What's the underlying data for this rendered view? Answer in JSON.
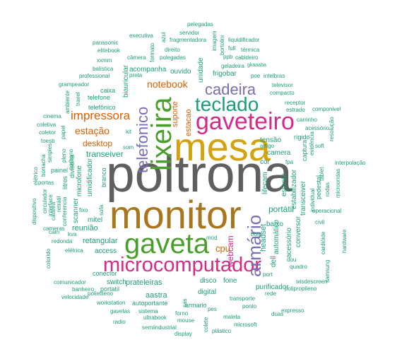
{
  "title": "word cloud",
  "colors": {
    "gray": "#5f5f5f",
    "gold": "#d4a20c",
    "bronze": "#a9761e",
    "green": "#4a9e2b",
    "magenta": "#d42a8a",
    "teal": "#1b9e77",
    "purple": "#7570b3",
    "orange": "#d95f02"
  },
  "words": [
    {
      "text": "poltrona",
      "color": "gray"
    },
    {
      "text": "mesa",
      "color": "gold"
    },
    {
      "text": "monitor",
      "color": "bronze"
    },
    {
      "text": "gaveta",
      "color": "green"
    },
    {
      "text": "gaveteiro",
      "color": "magenta"
    },
    {
      "text": "microcomputador",
      "color": "magenta"
    },
    {
      "text": "lixeira",
      "color": "green"
    },
    {
      "text": "teclado",
      "color": "teal"
    },
    {
      "text": "cadeira",
      "color": "purple"
    },
    {
      "text": "telefonico",
      "color": "purple"
    },
    {
      "text": "armário",
      "color": "purple"
    },
    {
      "text": "impressora",
      "color": "orange"
    },
    {
      "text": "notebook",
      "color": "orange"
    },
    {
      "text": "estação",
      "color": "orange"
    },
    {
      "text": "desktop",
      "color": "orange"
    },
    {
      "text": "transeiver",
      "color": "teal"
    },
    {
      "text": "webcam",
      "color": "magenta"
    },
    {
      "text": "cpu",
      "color": "orange"
    },
    {
      "text": "portátil",
      "color": "teal"
    },
    {
      "text": "suporte",
      "color": "orange"
    },
    {
      "text": "estacao",
      "color": "orange"
    },
    {
      "text": "reunião",
      "color": "teal"
    },
    {
      "text": "retangular",
      "color": "teal"
    },
    {
      "text": "access",
      "color": "teal"
    },
    {
      "text": "prateleiras",
      "color": "teal"
    },
    {
      "text": "fone",
      "color": "teal"
    },
    {
      "text": "disco",
      "color": "teal"
    },
    {
      "text": "switch",
      "color": "teal"
    },
    {
      "text": "aastra",
      "color": "teal"
    },
    {
      "text": "digital",
      "color": "teal"
    },
    {
      "text": "purificador",
      "color": "teal"
    },
    {
      "text": "baixo",
      "color": "teal"
    },
    {
      "text": "tensão",
      "color": "teal"
    },
    {
      "text": "camera",
      "color": "teal"
    },
    {
      "text": "cor",
      "color": "teal"
    },
    {
      "text": "estante",
      "color": "teal"
    },
    {
      "text": "lifecam",
      "color": "teal"
    },
    {
      "text": "headset",
      "color": "teal"
    },
    {
      "text": "dell",
      "color": "teal"
    },
    {
      "text": "automático",
      "color": "teal"
    },
    {
      "text": "frigobar",
      "color": "teal"
    },
    {
      "text": "acompanha",
      "color": "teal"
    },
    {
      "text": "ouvido",
      "color": "teal"
    },
    {
      "text": "unidade",
      "color": "teal"
    },
    {
      "text": "biauricular",
      "color": "teal"
    },
    {
      "text": "umidificador",
      "color": "teal"
    },
    {
      "text": "microfone",
      "color": "teal"
    },
    {
      "text": "scanner",
      "color": "teal"
    },
    {
      "text": "mitel",
      "color": "teal"
    },
    {
      "text": "caixa",
      "color": "teal"
    },
    {
      "text": "telefone",
      "color": "teal"
    },
    {
      "text": "telefônico",
      "color": "teal"
    },
    {
      "text": "branco",
      "color": "teal"
    },
    {
      "text": "painel",
      "color": "teal"
    },
    {
      "text": "litros",
      "color": "teal"
    },
    {
      "text": "divisoria",
      "color": "teal"
    },
    {
      "text": "conector",
      "color": "teal"
    },
    {
      "text": "autoportante",
      "color": "teal"
    },
    {
      "text": "portatil",
      "color": "teal"
    },
    {
      "text": "estabilizador",
      "color": "teal"
    },
    {
      "text": "acessório",
      "color": "teal"
    },
    {
      "text": "conversor",
      "color": "teal"
    },
    {
      "text": "transceiver",
      "color": "teal"
    },
    {
      "text": "captura",
      "color": "teal"
    },
    {
      "text": "rígido",
      "color": "teal"
    },
    {
      "text": "pedestal",
      "color": "teal"
    },
    {
      "text": "executiva",
      "color": "teal"
    },
    {
      "text": "servidor",
      "color": "teal"
    },
    {
      "text": "pelegadas",
      "color": "teal"
    },
    {
      "text": "panasonic",
      "color": "teal"
    },
    {
      "text": "elitebook",
      "color": "teal"
    },
    {
      "text": "câmera",
      "color": "teal"
    },
    {
      "text": "xxmm",
      "color": "teal"
    },
    {
      "text": "balística",
      "color": "teal"
    },
    {
      "text": "professional",
      "color": "teal"
    },
    {
      "text": "grampeador",
      "color": "teal"
    },
    {
      "text": "travel",
      "color": "teal"
    },
    {
      "text": "ambiente",
      "color": "teal"
    },
    {
      "text": "fragmentadora",
      "color": "teal"
    },
    {
      "text": "imagem",
      "color": "teal"
    },
    {
      "text": "full",
      "color": "teal"
    },
    {
      "text": "liquidificador",
      "color": "teal"
    },
    {
      "text": "térmica",
      "color": "teal"
    },
    {
      "text": "cabideiro",
      "color": "teal"
    },
    {
      "text": "ppb",
      "color": "teal"
    },
    {
      "text": "geladeira",
      "color": "teal"
    },
    {
      "text": "gkaaaba",
      "color": "teal"
    },
    {
      "text": "intelbras",
      "color": "teal"
    },
    {
      "text": "poe",
      "color": "teal"
    },
    {
      "text": "televisor",
      "color": "teal"
    },
    {
      "text": "compacto",
      "color": "teal"
    },
    {
      "text": "receptor",
      "color": "teal"
    },
    {
      "text": "estrado",
      "color": "teal"
    },
    {
      "text": "componivel",
      "color": "teal"
    },
    {
      "text": "carrinho",
      "color": "teal"
    },
    {
      "text": "acessório",
      "color": "teal"
    },
    {
      "text": "resolução",
      "color": "teal"
    },
    {
      "text": "soft",
      "color": "teal"
    },
    {
      "text": "interpolação",
      "color": "teal"
    },
    {
      "text": "microondas",
      "color": "teal"
    },
    {
      "text": "operacional",
      "color": "teal"
    },
    {
      "text": "civil",
      "color": "teal"
    },
    {
      "text": "cardióide",
      "color": "teal"
    },
    {
      "text": "hardware",
      "color": "teal"
    },
    {
      "text": "samsung",
      "color": "teal"
    },
    {
      "text": "wisdescreen",
      "color": "teal"
    },
    {
      "text": "polipropileno",
      "color": "teal"
    },
    {
      "text": "expresso",
      "color": "teal"
    },
    {
      "text": "microsoft",
      "color": "teal"
    },
    {
      "text": "plástico",
      "color": "teal"
    },
    {
      "text": "maleta",
      "color": "teal"
    },
    {
      "text": "transporte",
      "color": "teal"
    },
    {
      "text": "ponto",
      "color": "teal"
    },
    {
      "text": "rede",
      "color": "teal"
    },
    {
      "text": "armario",
      "color": "teal"
    },
    {
      "text": "sistema",
      "color": "teal"
    },
    {
      "text": "ultrabook",
      "color": "teal"
    },
    {
      "text": "mouse",
      "color": "teal"
    },
    {
      "text": "semiindustrial",
      "color": "teal"
    },
    {
      "text": "display",
      "color": "teal"
    },
    {
      "text": "radio",
      "color": "teal"
    },
    {
      "text": "gavetas",
      "color": "teal"
    },
    {
      "text": "workstation",
      "color": "teal"
    },
    {
      "text": "polietileno",
      "color": "teal"
    },
    {
      "text": "velocidade",
      "color": "teal"
    },
    {
      "text": "banheiro",
      "color": "teal"
    },
    {
      "text": "comunicador",
      "color": "teal"
    },
    {
      "text": "elétrica",
      "color": "teal"
    },
    {
      "text": "redonda",
      "color": "teal"
    },
    {
      "text": "cam",
      "color": "teal"
    },
    {
      "text": "kva",
      "color": "teal"
    },
    {
      "text": "colorido",
      "color": "teal"
    },
    {
      "text": "cameras",
      "color": "teal"
    },
    {
      "text": "fixo",
      "color": "teal"
    },
    {
      "text": "cadeira",
      "color": "teal"
    },
    {
      "text": "retrátil",
      "color": "teal"
    },
    {
      "text": "interface",
      "color": "teal"
    },
    {
      "text": "circulador",
      "color": "teal"
    },
    {
      "text": "dispositivo",
      "color": "teal"
    },
    {
      "text": "portas",
      "color": "teal"
    },
    {
      "text": "borracha",
      "color": "teal"
    },
    {
      "text": "elétrico",
      "color": "teal"
    },
    {
      "text": "toesb",
      "color": "teal"
    },
    {
      "text": "coletor",
      "color": "teal"
    },
    {
      "text": "coletiva",
      "color": "teal"
    },
    {
      "text": "cinema",
      "color": "teal"
    },
    {
      "text": "papel",
      "color": "teal"
    },
    {
      "text": "simples",
      "color": "teal"
    },
    {
      "text": "pleno",
      "color": "teal"
    },
    {
      "text": "carbono",
      "color": "teal"
    },
    {
      "text": "conferencia",
      "color": "teal"
    },
    {
      "text": "sofa",
      "color": "teal"
    },
    {
      "text": "som",
      "color": "teal"
    },
    {
      "text": "kit",
      "color": "teal"
    },
    {
      "text": "preta",
      "color": "teal"
    },
    {
      "text": "polegadas",
      "color": "teal"
    },
    {
      "text": "direito",
      "color": "teal"
    },
    {
      "text": "formato",
      "color": "teal"
    },
    {
      "text": "azul",
      "color": "teal"
    },
    {
      "text": "bortolini",
      "color": "teal"
    },
    {
      "text": "pes",
      "color": "teal"
    },
    {
      "text": "mod",
      "color": "teal"
    },
    {
      "text": "bote",
      "color": "teal"
    },
    {
      "text": "fpa",
      "color": "teal"
    },
    {
      "text": "duas",
      "color": "teal"
    },
    {
      "text": "port",
      "color": "teal"
    },
    {
      "text": "dou",
      "color": "teal"
    },
    {
      "text": "quadro",
      "color": "teal"
    },
    {
      "text": "forno",
      "color": "teal"
    },
    {
      "text": "colete",
      "color": "teal"
    },
    {
      "text": "sas",
      "color": "teal"
    },
    {
      "text": "rodas",
      "color": "teal"
    },
    {
      "text": "individual",
      "color": "teal"
    },
    {
      "text": "tablet",
      "color": "teal"
    },
    {
      "text": "evidência",
      "color": "teal"
    },
    {
      "text": "artigo",
      "color": "teal"
    }
  ]
}
